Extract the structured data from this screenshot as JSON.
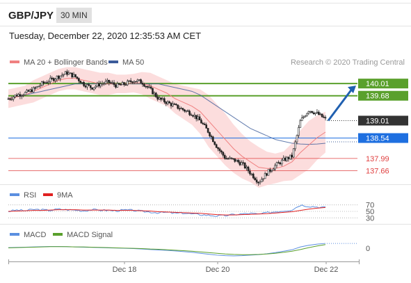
{
  "header": {
    "pair": "GBP/JPY",
    "timeframe": "30 MIN",
    "datetime": "Tuesday, December 22, 2020 12:35:53 AM CET"
  },
  "legend": {
    "ma20_label": "MA 20 + Bollinger Bands",
    "ma50_label": "MA 50",
    "copyright": "Research © 2020 Trading Central",
    "rsi_label": "RSI",
    "rsi_ma_label": "9MA",
    "macd_label": "MACD",
    "macd_signal_label": "MACD Signal"
  },
  "colors": {
    "ma20": "#f08080",
    "bollinger_fill": "#fbd5d5",
    "ma50": "#3b5b9a",
    "resistance": "#5aa02c",
    "support_blue": "#1e6fe0",
    "support_red": "#e04040",
    "current_price": "#333333",
    "rsi": "#5b8fe0",
    "rsi_ma": "#e02020",
    "macd": "#5b8fe0",
    "macd_signal": "#5aa02c",
    "arrow": "#2060b0"
  },
  "chart_data": [
    {
      "type": "candlestick",
      "panel": "price",
      "x_ticks": [
        "Dec 18",
        "Dec 20",
        "Dec 22"
      ],
      "ylim": [
        137.35,
        140.35
      ],
      "current_price": 139.01,
      "levels": [
        {
          "value": 140.01,
          "label": "140.01",
          "kind": "resistance"
        },
        {
          "value": 139.68,
          "label": "139.68",
          "kind": "resistance"
        },
        {
          "value": 138.54,
          "label": "138.54",
          "kind": "support_blue"
        },
        {
          "value": 137.99,
          "label": "137.99",
          "kind": "support_red"
        },
        {
          "value": 137.66,
          "label": "137.66",
          "kind": "support_red"
        }
      ],
      "close_path": [
        139.6,
        139.7,
        139.75,
        139.85,
        140.0,
        140.1,
        140.2,
        140.3,
        140.2,
        140.0,
        139.9,
        140.0,
        140.05,
        139.95,
        140.0,
        140.1,
        140.05,
        139.85,
        139.6,
        139.5,
        139.4,
        139.3,
        139.2,
        139.0,
        138.7,
        138.3,
        138.0,
        137.95,
        137.85,
        137.6,
        137.35,
        137.6,
        137.8,
        137.95,
        138.05,
        139.0,
        139.3,
        139.2,
        139.05
      ],
      "ma20_path": [
        139.6,
        139.65,
        139.7,
        139.8,
        139.9,
        140.0,
        140.1,
        140.15,
        140.15,
        140.1,
        140.05,
        140.0,
        140.0,
        140.0,
        140.0,
        140.02,
        140.02,
        139.95,
        139.85,
        139.75,
        139.6,
        139.5,
        139.4,
        139.25,
        139.0,
        138.75,
        138.5,
        138.25,
        138.05,
        137.9,
        137.75,
        137.72,
        137.72,
        137.78,
        137.9,
        138.15,
        138.35,
        138.55,
        138.7
      ],
      "bollinger_width": [
        0.25,
        0.25,
        0.25,
        0.3,
        0.3,
        0.3,
        0.3,
        0.3,
        0.3,
        0.3,
        0.3,
        0.3,
        0.3,
        0.25,
        0.25,
        0.25,
        0.3,
        0.35,
        0.35,
        0.35,
        0.4,
        0.45,
        0.5,
        0.6,
        0.7,
        0.7,
        0.7,
        0.65,
        0.6,
        0.55,
        0.55,
        0.45,
        0.4,
        0.4,
        0.5,
        0.6,
        0.65,
        0.6,
        0.55
      ],
      "ma50_path": [
        139.6,
        139.65,
        139.7,
        139.75,
        139.8,
        139.85,
        139.9,
        139.95,
        140.0,
        140.0,
        140.0,
        140.0,
        140.0,
        140.0,
        140.0,
        140.0,
        140.0,
        140.0,
        140.0,
        139.95,
        139.9,
        139.85,
        139.8,
        139.7,
        139.55,
        139.4,
        139.25,
        139.1,
        138.95,
        138.8,
        138.7,
        138.6,
        138.5,
        138.45,
        138.4,
        138.38,
        138.37,
        138.38,
        138.4
      ],
      "projection": {
        "from": 139.01,
        "to": 140.01
      }
    },
    {
      "type": "line",
      "panel": "rsi",
      "levels": [
        {
          "value": 70,
          "label": "70"
        },
        {
          "value": 50,
          "label": "50"
        },
        {
          "value": 30,
          "label": "30"
        }
      ],
      "ylim": [
        20,
        80
      ],
      "rsi": [
        50,
        54,
        52,
        56,
        55,
        53,
        57,
        55,
        54,
        52,
        55,
        54,
        53,
        52,
        54,
        53,
        50,
        48,
        46,
        47,
        44,
        45,
        42,
        40,
        38,
        36,
        37,
        40,
        42,
        44,
        41,
        46,
        49,
        52,
        55,
        70,
        66,
        64,
        62
      ],
      "rsi_ma": [
        50,
        51,
        52,
        53,
        53,
        54,
        55,
        55,
        55,
        54,
        54,
        54,
        54,
        53,
        53,
        53,
        52,
        51,
        49,
        48,
        47,
        46,
        45,
        44,
        42,
        40,
        39,
        39,
        40,
        41,
        42,
        43,
        45,
        47,
        49,
        53,
        57,
        60,
        62
      ]
    },
    {
      "type": "line",
      "panel": "macd",
      "levels": [
        {
          "value": 0,
          "label": "0"
        }
      ],
      "ylim": [
        -0.45,
        0.35
      ],
      "macd": [
        0.02,
        0.03,
        0.04,
        0.05,
        0.06,
        0.07,
        0.07,
        0.06,
        0.05,
        0.04,
        0.03,
        0.02,
        0.01,
        0.0,
        -0.01,
        -0.02,
        -0.04,
        -0.06,
        -0.08,
        -0.1,
        -0.12,
        -0.15,
        -0.18,
        -0.22,
        -0.26,
        -0.3,
        -0.32,
        -0.33,
        -0.32,
        -0.3,
        -0.28,
        -0.24,
        -0.19,
        -0.13,
        -0.07,
        0.05,
        0.12,
        0.17,
        0.2
      ],
      "macd_signal": [
        0.01,
        0.02,
        0.03,
        0.04,
        0.05,
        0.06,
        0.06,
        0.06,
        0.05,
        0.05,
        0.04,
        0.03,
        0.02,
        0.01,
        0.0,
        -0.01,
        -0.02,
        -0.04,
        -0.05,
        -0.07,
        -0.09,
        -0.11,
        -0.13,
        -0.16,
        -0.19,
        -0.22,
        -0.25,
        -0.27,
        -0.28,
        -0.28,
        -0.27,
        -0.25,
        -0.22,
        -0.18,
        -0.13,
        -0.06,
        0.02,
        0.09,
        0.15
      ]
    }
  ]
}
